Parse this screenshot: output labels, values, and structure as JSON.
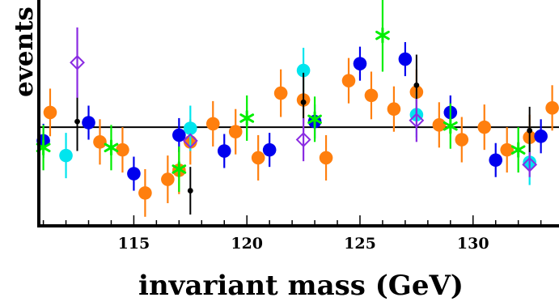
{
  "chart_data": {
    "type": "scatter",
    "xlabel": "invariant mass (GeV)",
    "ylabel": "events",
    "xlim": [
      110.8,
      133.8
    ],
    "ylim": [
      -4.35,
      5.75
    ],
    "xticks": [
      115,
      120,
      125,
      130
    ],
    "baseline": 0,
    "grid": false,
    "series": [
      {
        "marker": "circle",
        "color": "#ff7f0e",
        "points": [
          {
            "x": 111.3,
            "y": 0.65,
            "err": 1.05
          },
          {
            "x": 113.5,
            "y": -0.65,
            "err": 1.0
          },
          {
            "x": 114.5,
            "y": -1.0,
            "err": 1.0
          },
          {
            "x": 115.5,
            "y": -2.9,
            "err": 1.05
          },
          {
            "x": 116.5,
            "y": -2.3,
            "err": 1.05
          },
          {
            "x": 117.0,
            "y": -1.9,
            "err": 1.05
          },
          {
            "x": 117.5,
            "y": -0.65,
            "err": 1.0
          },
          {
            "x": 118.5,
            "y": 0.15,
            "err": 1.0
          },
          {
            "x": 119.5,
            "y": -0.2,
            "err": 1.0
          },
          {
            "x": 120.5,
            "y": -1.35,
            "err": 1.0
          },
          {
            "x": 121.5,
            "y": 1.5,
            "err": 1.05
          },
          {
            "x": 122.5,
            "y": 1.2,
            "err": 1.0
          },
          {
            "x": 123.5,
            "y": -1.35,
            "err": 1.0
          },
          {
            "x": 124.5,
            "y": 2.05,
            "err": 1.0
          },
          {
            "x": 125.5,
            "y": 1.4,
            "err": 1.05
          },
          {
            "x": 126.5,
            "y": 0.8,
            "err": 1.0
          },
          {
            "x": 127.5,
            "y": 1.55,
            "err": 1.0
          },
          {
            "x": 128.5,
            "y": 0.1,
            "err": 1.0
          },
          {
            "x": 129.5,
            "y": -0.55,
            "err": 1.0
          },
          {
            "x": 130.5,
            "y": 0.0,
            "err": 1.0
          },
          {
            "x": 131.5,
            "y": -1.0,
            "err": 1.0
          },
          {
            "x": 132.5,
            "y": -0.45,
            "err": 1.0
          },
          {
            "x": 133.5,
            "y": 0.85,
            "err": 1.0
          }
        ]
      },
      {
        "marker": "circle",
        "color": "#0000ee",
        "points": [
          {
            "x": 111.0,
            "y": -0.6,
            "err": 0.75
          },
          {
            "x": 113.0,
            "y": 0.2,
            "err": 0.75
          },
          {
            "x": 115.0,
            "y": -2.05,
            "err": 0.75
          },
          {
            "x": 117.0,
            "y": -0.35,
            "err": 0.75
          },
          {
            "x": 119.0,
            "y": -1.05,
            "err": 0.75
          },
          {
            "x": 121.0,
            "y": -1.0,
            "err": 0.75
          },
          {
            "x": 123.0,
            "y": 0.25,
            "err": 0.75
          },
          {
            "x": 125.0,
            "y": 2.8,
            "err": 0.75
          },
          {
            "x": 127.0,
            "y": 3.0,
            "err": 0.75
          },
          {
            "x": 129.0,
            "y": 0.65,
            "err": 0.75
          },
          {
            "x": 131.0,
            "y": -1.45,
            "err": 0.75
          },
          {
            "x": 133.0,
            "y": -0.4,
            "err": 0.75
          }
        ]
      },
      {
        "marker": "circle",
        "color": "#00e5ee",
        "points": [
          {
            "x": 112.0,
            "y": -1.25,
            "err": 1.0
          },
          {
            "x": 117.5,
            "y": -0.05,
            "err": 1.0
          },
          {
            "x": 122.5,
            "y": 2.5,
            "err": 1.0
          },
          {
            "x": 127.5,
            "y": 0.55,
            "err": 1.0
          },
          {
            "x": 132.5,
            "y": -1.55,
            "err": 1.0
          }
        ]
      },
      {
        "marker": "star",
        "color": "#00ee00",
        "points": [
          {
            "x": 111.0,
            "y": -0.9,
            "err": 1.0
          },
          {
            "x": 114.0,
            "y": -0.9,
            "err": 1.0
          },
          {
            "x": 117.0,
            "y": -1.85,
            "err": 1.0
          },
          {
            "x": 120.0,
            "y": 0.4,
            "err": 1.0
          },
          {
            "x": 123.0,
            "y": 0.35,
            "err": 1.0
          },
          {
            "x": 126.0,
            "y": 4.05,
            "err": 1.6
          },
          {
            "x": 129.0,
            "y": 0.05,
            "err": 1.0
          },
          {
            "x": 132.0,
            "y": -1.0,
            "err": 1.0
          }
        ]
      },
      {
        "marker": "dot",
        "color": "#000000",
        "points": [
          {
            "x": 112.5,
            "y": 0.25,
            "err": 1.3
          },
          {
            "x": 117.5,
            "y": -2.8,
            "err": 1.05
          },
          {
            "x": 122.5,
            "y": 1.1,
            "err": 1.3
          },
          {
            "x": 127.5,
            "y": 1.85,
            "err": 1.35
          },
          {
            "x": 132.5,
            "y": -0.15,
            "err": 1.05
          }
        ]
      },
      {
        "marker": "diamond",
        "color": "#8a2be2",
        "points": [
          {
            "x": 112.5,
            "y": 2.85,
            "err": 1.55
          },
          {
            "x": 117.5,
            "y": -0.6,
            "err": 0.0
          },
          {
            "x": 122.5,
            "y": -0.55,
            "err": 0.95
          },
          {
            "x": 127.5,
            "y": 0.3,
            "err": 0.95
          },
          {
            "x": 132.5,
            "y": -1.65,
            "err": 0.55
          }
        ]
      }
    ]
  }
}
